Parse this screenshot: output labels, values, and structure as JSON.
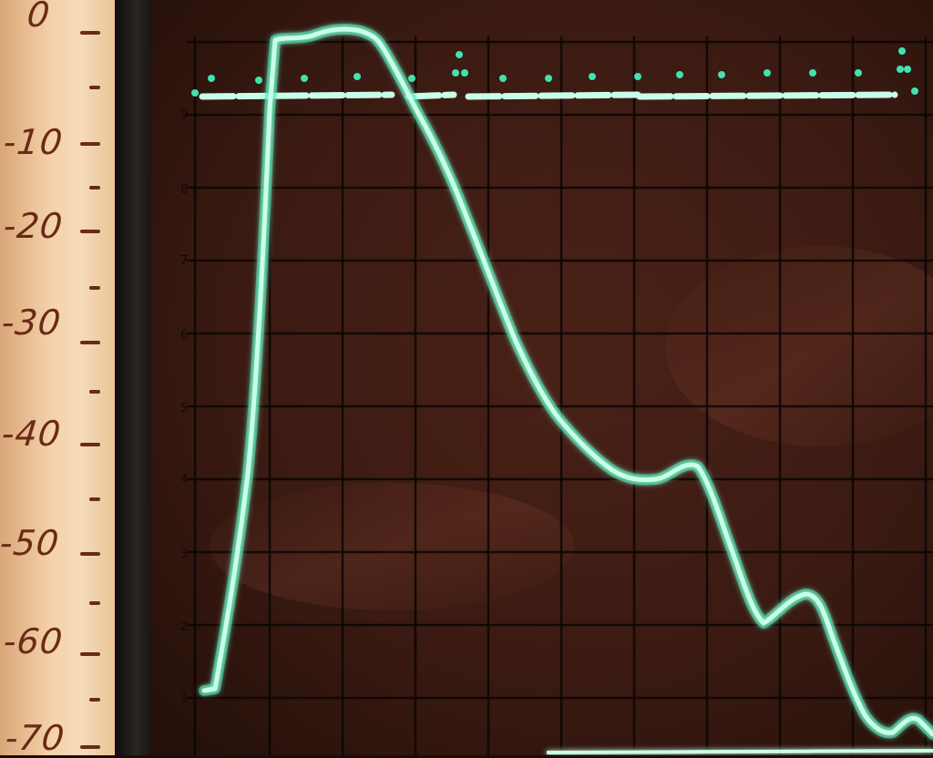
{
  "scale": {
    "labels": [
      "0",
      "-10",
      "-20",
      "-30",
      "-40",
      "-50",
      "-60",
      "-70"
    ]
  },
  "graticule": {
    "row_marks": [
      "9",
      "8",
      "7",
      "6",
      "5",
      "4",
      "3",
      "2",
      "1"
    ]
  },
  "colors": {
    "trace": "#c8ffe8",
    "trace_glow": "#3fe3b0",
    "grid": "#0b0605",
    "screen": "#3a1a12",
    "scale_ink": "#6a2a16",
    "scale_paper": "#f3d5b2"
  }
}
